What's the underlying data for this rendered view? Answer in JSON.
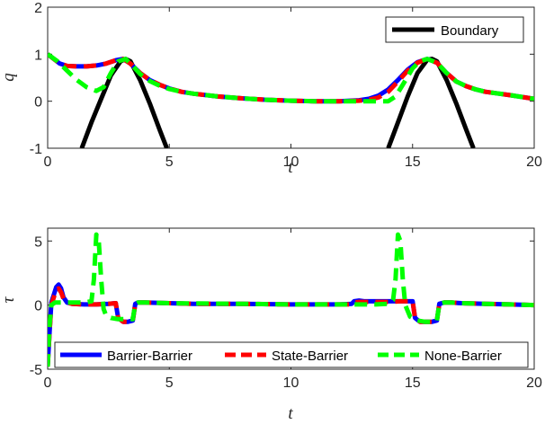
{
  "chart_data": [
    {
      "type": "line",
      "xlabel": "t",
      "ylabel": "q",
      "xlim": [
        0,
        20
      ],
      "ylim": [
        -1,
        2
      ],
      "xticks": [
        0,
        5,
        10,
        15,
        20
      ],
      "yticks": [
        -1,
        0,
        1,
        2
      ],
      "legend_position": "top-right",
      "grid": false,
      "series": [
        {
          "name": "Boundary",
          "color": "#000000",
          "style": "solid",
          "segments": [
            {
              "x": [
                1.4,
                1.8,
                2.2,
                2.6,
                3.0,
                3.2,
                3.4,
                3.8,
                4.2,
                4.6,
                4.9
              ],
              "y": [
                -1.0,
                -0.45,
                0.05,
                0.55,
                0.85,
                0.9,
                0.85,
                0.45,
                -0.05,
                -0.6,
                -1.0
              ]
            },
            {
              "x": [
                14.0,
                14.4,
                14.8,
                15.2,
                15.6,
                15.8,
                16.0,
                16.4,
                16.8,
                17.2,
                17.5
              ],
              "y": [
                -1.0,
                -0.45,
                0.1,
                0.6,
                0.88,
                0.9,
                0.85,
                0.45,
                -0.05,
                -0.6,
                -1.0
              ]
            }
          ]
        },
        {
          "color": "#0000ff",
          "style": "solid",
          "x": [
            0,
            0.5,
            0.8,
            1.2,
            1.6,
            2.0,
            2.4,
            2.8,
            3.1,
            3.4,
            3.8,
            4.2,
            4.6,
            5.0,
            5.5,
            6.0,
            7.0,
            8.0,
            9.0,
            10.0,
            11.0,
            12.0,
            12.8,
            13.2,
            13.6,
            14.0,
            14.4,
            14.8,
            15.2,
            15.6,
            16.0,
            16.4,
            16.8,
            17.2,
            17.6,
            18.0,
            19.0,
            20.0
          ],
          "y": [
            1.0,
            0.8,
            0.75,
            0.74,
            0.74,
            0.76,
            0.8,
            0.87,
            0.9,
            0.8,
            0.6,
            0.45,
            0.35,
            0.27,
            0.2,
            0.16,
            0.1,
            0.06,
            0.03,
            0.01,
            0.0,
            0.0,
            0.02,
            0.05,
            0.12,
            0.25,
            0.45,
            0.67,
            0.83,
            0.9,
            0.82,
            0.6,
            0.42,
            0.32,
            0.25,
            0.2,
            0.13,
            0.05
          ]
        },
        {
          "color": "#ff0000",
          "style": "dashed",
          "x": [
            0,
            0.5,
            0.8,
            1.2,
            1.6,
            2.0,
            2.4,
            2.8,
            3.1,
            3.4,
            3.8,
            4.2,
            4.6,
            5.0,
            5.5,
            6.0,
            7.0,
            8.0,
            9.0,
            10.0,
            11.0,
            12.0,
            12.8,
            13.2,
            13.6,
            14.0,
            14.4,
            14.8,
            15.2,
            15.6,
            16.0,
            16.4,
            16.8,
            17.2,
            17.6,
            18.0,
            19.0,
            20.0
          ],
          "y": [
            1.0,
            0.8,
            0.75,
            0.74,
            0.74,
            0.76,
            0.8,
            0.87,
            0.9,
            0.8,
            0.6,
            0.45,
            0.35,
            0.27,
            0.2,
            0.16,
            0.1,
            0.06,
            0.03,
            0.01,
            0.0,
            0.0,
            0.01,
            0.03,
            0.08,
            0.2,
            0.42,
            0.65,
            0.82,
            0.9,
            0.82,
            0.6,
            0.42,
            0.32,
            0.25,
            0.2,
            0.13,
            0.05
          ]
        },
        {
          "color": "#00ff00",
          "style": "dashed",
          "x": [
            0,
            0.4,
            0.8,
            1.2,
            1.6,
            2.0,
            2.3,
            2.6,
            2.9,
            3.2,
            3.5,
            3.8,
            4.2,
            4.6,
            5.0,
            5.5,
            6.0,
            7.0,
            8.0,
            9.0,
            10.0,
            11.0,
            12.0,
            13.0,
            13.6,
            14.0,
            14.3,
            14.6,
            15.0,
            15.3,
            15.6,
            16.0,
            16.4,
            16.8,
            17.2,
            17.6,
            18.0,
            19.0,
            20.0
          ],
          "y": [
            1.0,
            0.85,
            0.65,
            0.45,
            0.3,
            0.22,
            0.3,
            0.6,
            0.85,
            0.9,
            0.75,
            0.58,
            0.43,
            0.33,
            0.26,
            0.2,
            0.16,
            0.1,
            0.06,
            0.03,
            0.01,
            0.0,
            0.0,
            0.0,
            0.0,
            0.0,
            0.1,
            0.35,
            0.7,
            0.85,
            0.9,
            0.82,
            0.6,
            0.42,
            0.32,
            0.25,
            0.2,
            0.13,
            0.05
          ]
        }
      ]
    },
    {
      "type": "line",
      "xlabel": "t",
      "ylabel": "τ",
      "xlim": [
        0,
        20
      ],
      "ylim": [
        -5,
        6
      ],
      "xticks": [
        0,
        5,
        10,
        15,
        20
      ],
      "yticks": [
        -5,
        0,
        5
      ],
      "legend_position": "bottom",
      "grid": false,
      "series": [
        {
          "name": "Barrier-Barrier",
          "color": "#0000ff",
          "style": "solid",
          "x": [
            0,
            0.08,
            0.15,
            0.25,
            0.35,
            0.45,
            0.55,
            0.65,
            0.8,
            1.0,
            1.5,
            2.0,
            2.5,
            2.8,
            2.9,
            3.1,
            3.3,
            3.5,
            3.6,
            3.7,
            4.0,
            5.0,
            6.0,
            8.0,
            10.0,
            12.0,
            12.5,
            12.6,
            12.8,
            13.0,
            13.5,
            14.0,
            14.5,
            15.0,
            15.1,
            15.3,
            15.5,
            15.8,
            16.0,
            16.1,
            16.3,
            16.6,
            17.0,
            18.0,
            19.0,
            20.0
          ],
          "y": [
            -4.8,
            -2.0,
            0.2,
            0.8,
            1.4,
            1.6,
            1.3,
            0.6,
            0.2,
            0.1,
            0.05,
            0.05,
            0.1,
            0.15,
            -1.0,
            -1.3,
            -1.3,
            -1.2,
            0.1,
            0.2,
            0.2,
            0.15,
            0.1,
            0.1,
            0.05,
            0.05,
            0.1,
            0.3,
            0.35,
            0.3,
            0.3,
            0.3,
            0.3,
            0.3,
            -1.0,
            -1.3,
            -1.3,
            -1.3,
            -1.2,
            0.1,
            0.2,
            0.2,
            0.15,
            0.1,
            0.05,
            0.0
          ]
        },
        {
          "name": "State-Barrier",
          "color": "#ff0000",
          "style": "dashed",
          "x": [
            0,
            0.08,
            0.15,
            0.25,
            0.35,
            0.45,
            0.55,
            0.65,
            0.8,
            1.0,
            1.5,
            2.0,
            2.5,
            2.8,
            2.9,
            3.1,
            3.3,
            3.5,
            3.6,
            3.7,
            4.0,
            5.0,
            6.0,
            8.0,
            10.0,
            12.0,
            12.5,
            12.6,
            12.8,
            13.0,
            13.5,
            14.0,
            14.5,
            15.0,
            15.1,
            15.3,
            15.5,
            15.8,
            16.0,
            16.1,
            16.3,
            16.6,
            17.0,
            18.0,
            19.0,
            20.0
          ],
          "y": [
            -4.8,
            -2.0,
            0.0,
            0.6,
            1.2,
            1.3,
            1.0,
            0.5,
            0.2,
            0.1,
            0.05,
            0.05,
            0.1,
            0.15,
            -1.0,
            -1.3,
            -1.3,
            -1.2,
            0.1,
            0.2,
            0.2,
            0.15,
            0.1,
            0.1,
            0.05,
            0.05,
            0.05,
            0.2,
            0.25,
            0.25,
            0.25,
            0.25,
            0.3,
            0.3,
            -1.0,
            -1.3,
            -1.3,
            -1.3,
            -1.2,
            0.1,
            0.2,
            0.2,
            0.15,
            0.1,
            0.05,
            0.0
          ]
        },
        {
          "name": "None-Barrier",
          "color": "#00ff00",
          "style": "dashed",
          "x": [
            0,
            0.08,
            0.15,
            0.3,
            0.6,
            1.0,
            1.5,
            1.8,
            1.9,
            2.0,
            2.1,
            2.2,
            2.3,
            2.4,
            2.6,
            2.9,
            3.1,
            3.3,
            3.5,
            3.6,
            3.7,
            4.0,
            5.0,
            8.0,
            10.0,
            12.0,
            13.0,
            13.5,
            14.0,
            14.2,
            14.3,
            14.4,
            14.5,
            14.6,
            14.7,
            14.9,
            15.2,
            15.5,
            15.8,
            16.0,
            16.1,
            16.3,
            16.6,
            17.0,
            18.0,
            20.0
          ],
          "y": [
            -4.8,
            -1.5,
            0.0,
            0.2,
            0.2,
            0.2,
            0.2,
            0.3,
            2.0,
            5.5,
            5.0,
            2.0,
            -0.3,
            -0.8,
            -1.0,
            -1.1,
            -1.1,
            -1.1,
            -1.1,
            0.1,
            0.2,
            0.2,
            0.15,
            0.1,
            0.05,
            0.05,
            0.05,
            0.05,
            0.1,
            0.4,
            2.0,
            5.5,
            5.0,
            2.0,
            0.0,
            -0.9,
            -1.2,
            -1.3,
            -1.3,
            -1.2,
            0.1,
            0.2,
            0.2,
            0.15,
            0.1,
            0.0
          ]
        }
      ]
    }
  ]
}
